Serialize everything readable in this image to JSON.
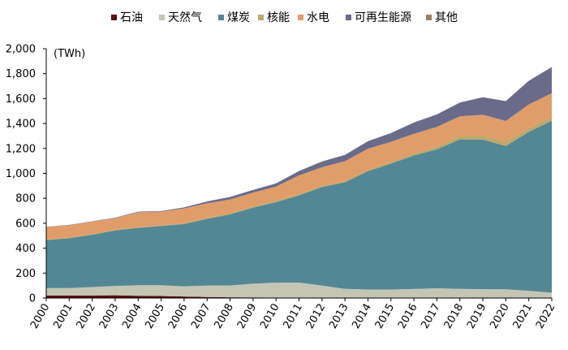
{
  "chart_data": {
    "type": "area",
    "stacked": true,
    "title": "",
    "unit_label": "(TWh)",
    "xlabel": "",
    "ylabel": "",
    "ylim": [
      0,
      2000
    ],
    "yticks": [
      0,
      200,
      400,
      600,
      800,
      1000,
      1200,
      1400,
      1600,
      1800,
      2000
    ],
    "ytick_labels": [
      "0",
      "200",
      "400",
      "600",
      "800",
      "1,000",
      "1,200",
      "1,400",
      "1,600",
      "1,800",
      "2,000"
    ],
    "grid": false,
    "legend_position": "top",
    "categories": [
      "2000",
      "2001",
      "2002",
      "2003",
      "2004",
      "2005",
      "2006",
      "2007",
      "2008",
      "2009",
      "2010",
      "2011",
      "2012",
      "2013",
      "2014",
      "2015",
      "2016",
      "2017",
      "2018",
      "2019",
      "2020",
      "2021",
      "2022"
    ],
    "series": [
      {
        "name": "石油",
        "color": "#5a0f12",
        "values": [
          20,
          20,
          20,
          22,
          18,
          16,
          12,
          8,
          6,
          5,
          4,
          4,
          3,
          3,
          3,
          3,
          3,
          3,
          3,
          3,
          3,
          3,
          3
        ]
      },
      {
        "name": "天然气",
        "color": "#c5c5b4",
        "values": [
          60,
          60,
          68,
          75,
          85,
          87,
          82,
          92,
          95,
          110,
          120,
          120,
          97,
          70,
          65,
          65,
          70,
          75,
          70,
          68,
          67,
          55,
          40
        ]
      },
      {
        "name": "煤炭",
        "color": "#538795",
        "values": [
          385,
          400,
          420,
          445,
          460,
          475,
          500,
          535,
          570,
          610,
          645,
          700,
          790,
          855,
          950,
          1010,
          1070,
          1115,
          1200,
          1200,
          1150,
          1275,
          1380
        ]
      },
      {
        "name": "核能",
        "color": "#bba86b",
        "values": [
          5,
          5,
          5,
          5,
          5,
          5,
          5,
          10,
          10,
          10,
          10,
          10,
          10,
          10,
          10,
          15,
          15,
          20,
          25,
          30,
          30,
          30,
          30
        ]
      },
      {
        "name": "水电",
        "color": "#e09d6a",
        "values": [
          100,
          100,
          100,
          95,
          120,
          110,
          120,
          115,
          110,
          110,
          115,
          150,
          150,
          160,
          170,
          160,
          160,
          160,
          160,
          170,
          170,
          190,
          190
        ]
      },
      {
        "name": "可再生能源",
        "color": "#6a6b8a",
        "values": [
          2,
          2,
          3,
          3,
          5,
          5,
          8,
          15,
          20,
          22,
          25,
          35,
          45,
          50,
          60,
          70,
          90,
          100,
          110,
          140,
          160,
          190,
          210
        ]
      },
      {
        "name": "其他",
        "color": "#9c8064",
        "values": [
          0,
          0,
          0,
          0,
          0,
          0,
          0,
          0,
          0,
          0,
          0,
          0,
          0,
          0,
          0,
          0,
          0,
          0,
          0,
          0,
          0,
          0,
          0
        ]
      }
    ]
  }
}
